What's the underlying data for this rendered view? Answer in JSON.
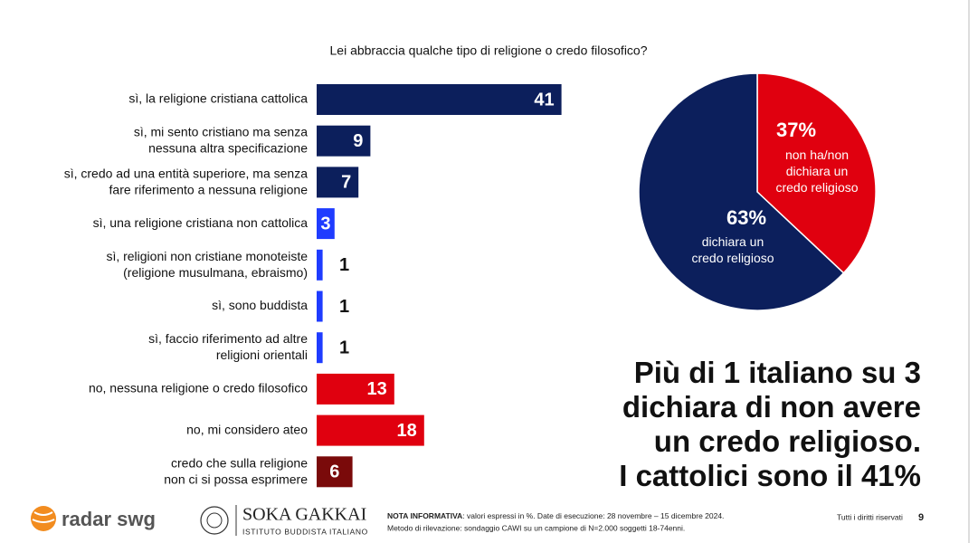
{
  "chart_data": [
    {
      "type": "bar",
      "title": "Lei abbraccia qualche tipo di religione o credo filosofico?",
      "categories": [
        "sì, la religione cristiana cattolica",
        "sì, mi sento cristiano ma senza\nnessuna altra specificazione",
        "sì, credo ad una entità superiore, ma senza\nfare riferimento a nessuna religione",
        "sì, una religione cristiana non cattolica",
        "sì, religioni non cristiane monoteiste\n(religione musulmana, ebraismo)",
        "sì, sono buddista",
        "sì, faccio riferimento ad altre\nreligioni orientali",
        "no, nessuna religione o credo filosofico",
        "no, mi considero ateo",
        "credo che sulla religione\nnon ci si possa esprimere"
      ],
      "values": [
        41,
        9,
        7,
        3,
        1,
        1,
        1,
        13,
        18,
        6
      ],
      "colors": [
        "#0c1f5c",
        "#0c1f5c",
        "#0c1f5c",
        "#1f3cff",
        "#1f3cff",
        "#1f3cff",
        "#1f3cff",
        "#e0000f",
        "#e0000f",
        "#7a0a0a"
      ]
    },
    {
      "type": "pie",
      "categories": [
        "non ha/non\ndichiara un\ncredo religioso",
        "dichiara un\ncredo religioso"
      ],
      "values": [
        37,
        63
      ],
      "value_labels": [
        "37%",
        "63%"
      ],
      "colors": [
        "#e0000f",
        "#0c1f5c"
      ]
    }
  ],
  "headline": "Più di 1 italiano su 3\ndichiara di non avere\nun credo religioso.\nI cattolici sono il 41%",
  "footer": {
    "logo1": "radar swg",
    "logo2": "SOKA GAKKAI",
    "logo2_sub": "ISTITUTO BUDDISTA ITALIANO",
    "note_label": "NOTA INFORMATIVA",
    "note": ": valori espressi in %. Date di esecuzione: 28 novembre – 15 dicembre 2024.",
    "method": "Metodo di rilevazione: sondaggio CAWI su un campione di N=2.000 soggetti 18-74enni.",
    "rights": "Tutti i diritti riservati",
    "page": "9"
  }
}
